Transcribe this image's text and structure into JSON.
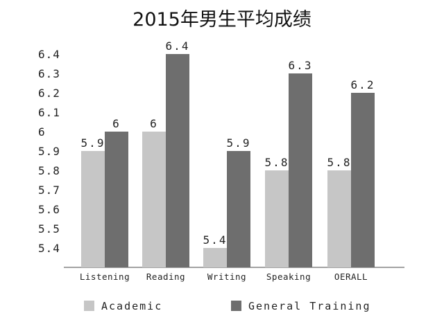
{
  "chart_data": {
    "type": "bar",
    "title": "2015年男生平均成绩",
    "xlabel": "",
    "ylabel": "",
    "categories": [
      "Listening",
      "Reading",
      "Writing",
      "Speaking",
      "OERALL"
    ],
    "y_ticks": [
      "5.4",
      "5.5",
      "5.6",
      "5.7",
      "5.8",
      "5.9",
      "6",
      "6.1",
      "6.2",
      "6.3",
      "6.4"
    ],
    "ylim": [
      5.3,
      6.4
    ],
    "grid": false,
    "legend_position": "bottom",
    "series": [
      {
        "name": "Academic",
        "color": "#c6c6c6",
        "values": [
          5.9,
          6,
          5.4,
          5.8,
          5.8
        ],
        "labels": [
          "5.9",
          "6",
          "5.4",
          "5.8",
          "5.8"
        ]
      },
      {
        "name": "General Training",
        "color": "#6e6e6e",
        "values": [
          6,
          6.4,
          5.9,
          6.3,
          6.2
        ],
        "labels": [
          "6",
          "6.4",
          "5.9",
          "6.3",
          "6.2"
        ]
      }
    ]
  }
}
